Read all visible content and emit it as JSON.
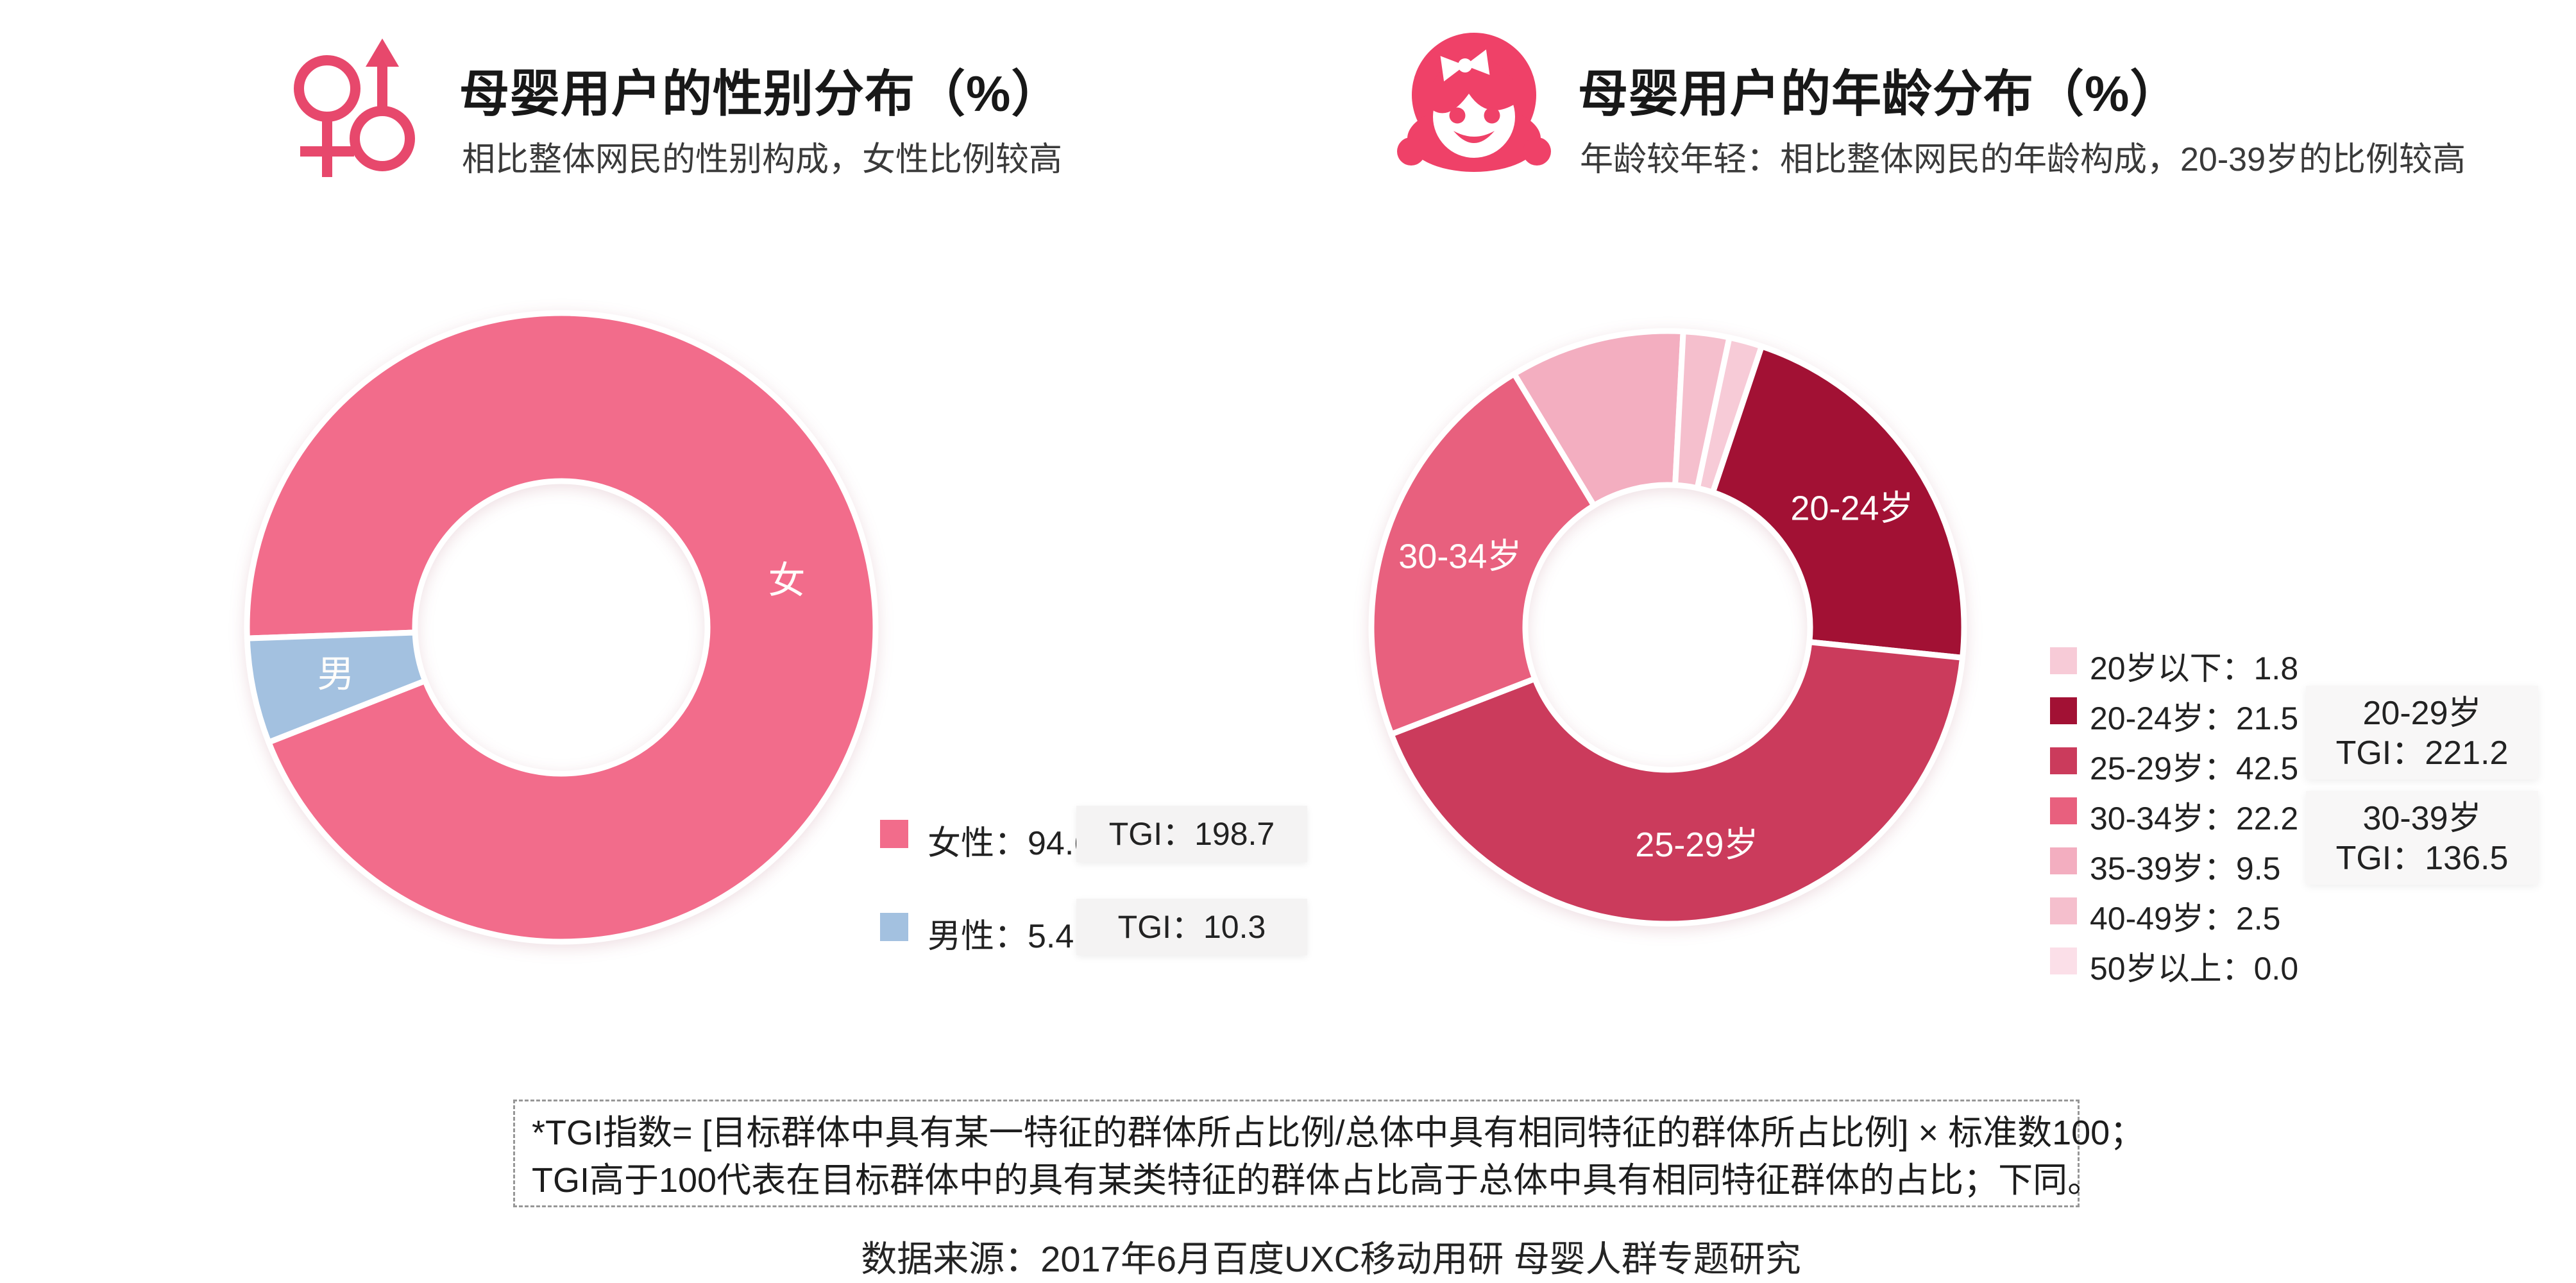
{
  "page": {
    "background": "#FFFFFF"
  },
  "left_panel": {
    "title": "母婴用户的性别分布（%）",
    "subtitle": "相比整体网民的性别构成，女性比例较高",
    "legend": [
      {
        "text": "女性：94.6",
        "color": "#F26C8B",
        "tgi_text": "TGI：198.7"
      },
      {
        "text": "男性：5.4",
        "color": "#A3C1E0",
        "tgi_text": "TGI：10.3"
      }
    ]
  },
  "right_panel": {
    "title": "母婴用户的年龄分布（%）",
    "subtitle": "年龄较年轻：相比整体网民的年龄构成，20-39岁的比例较高",
    "legend": [
      {
        "text": "20岁以下：1.8",
        "color": "#F7CBD7"
      },
      {
        "text": "20-24岁：21.5",
        "color": "#A21134"
      },
      {
        "text": "25-29岁：42.5",
        "color": "#CB3B5C"
      },
      {
        "text": "30-34岁：22.2",
        "color": "#E8607E"
      },
      {
        "text": "35-39岁：9.5",
        "color": "#F3AEC0"
      },
      {
        "text": "40-49岁：2.5",
        "color": "#F5BFCD"
      },
      {
        "text": "50岁以上：0.0",
        "color": "#FBDFE8"
      }
    ],
    "tgi_boxes": [
      {
        "group": "20-29岁",
        "tgi_text": "TGI：221.2"
      },
      {
        "group": "30-39岁",
        "tgi_text": "TGI：136.5"
      }
    ]
  },
  "footer": {
    "note_line1": "*TGI指数= [目标群体中具有某一特征的群体所占比例/总体中具有相同特征的群体所占比例] × 标准数100；",
    "note_line2": "TGI高于100代表在目标群体中的具有某类特征的群体占比高于总体中具有相同特征群体的占比；下同。",
    "source": "数据来源：2017年6月百度UXC移动用研 母婴人群专题研究"
  },
  "chart_data": [
    {
      "type": "pie",
      "variant": "donut",
      "title": "母婴用户的性别分布（%）",
      "unit": "percent",
      "start_angle_deg": 268,
      "legend_position": "bottom-right",
      "slices": [
        {
          "label": "女",
          "name": "女性",
          "value": 94.6,
          "tgi": 198.7,
          "color": "#F26C8B"
        },
        {
          "label": "男",
          "name": "男性",
          "value": 5.4,
          "tgi": 10.3,
          "color": "#A3C1E0"
        }
      ]
    },
    {
      "type": "pie",
      "variant": "donut",
      "title": "母婴用户的年龄分布（%）",
      "unit": "percent",
      "start_angle_deg": 12,
      "legend_position": "right",
      "slices": [
        {
          "label": "",
          "name": "20岁以下",
          "value": 1.8,
          "color": "#F7CBD7"
        },
        {
          "label": "20-24岁",
          "name": "20-24岁",
          "value": 21.5,
          "color": "#A21134"
        },
        {
          "label": "25-29岁",
          "name": "25-29岁",
          "value": 42.5,
          "color": "#CB3B5C"
        },
        {
          "label": "30-34岁",
          "name": "30-34岁",
          "value": 22.2,
          "color": "#E8607E"
        },
        {
          "label": "",
          "name": "35-39岁",
          "value": 9.5,
          "color": "#F3AEC0"
        },
        {
          "label": "",
          "name": "40-49岁",
          "value": 2.5,
          "color": "#F5BFCD"
        },
        {
          "label": "",
          "name": "50岁以上",
          "value": 0.0,
          "color": "#FBDFE8"
        }
      ],
      "group_tgi": [
        {
          "group": "20-29岁",
          "tgi": 221.2
        },
        {
          "group": "30-39岁",
          "tgi": 136.5
        }
      ]
    }
  ]
}
